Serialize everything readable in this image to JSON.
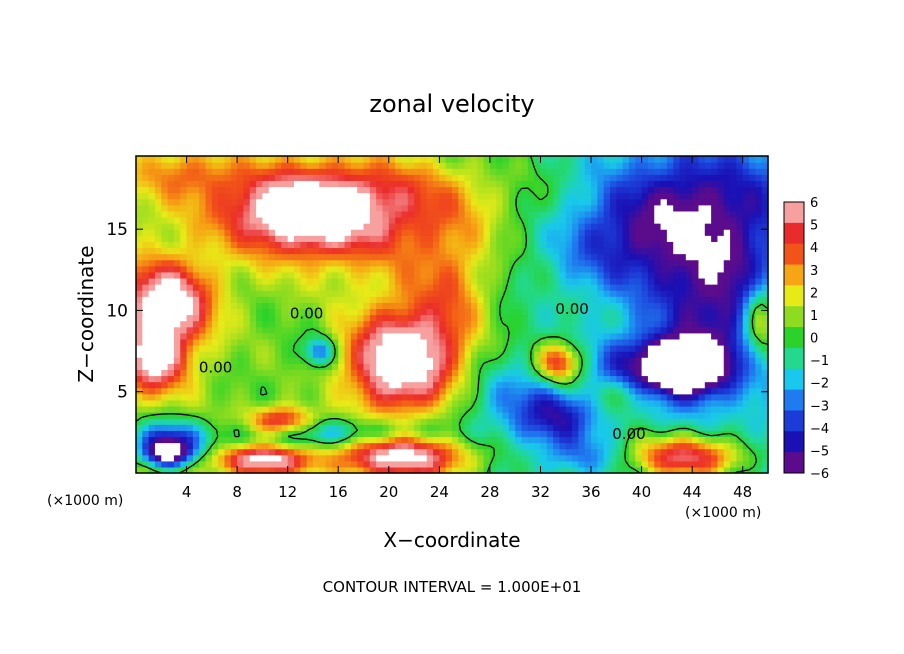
{
  "chart_data": {
    "type": "heatmap",
    "title": "zonal velocity",
    "xlabel": "X−coordinate",
    "ylabel": "Z−coordinate",
    "x_unit": "(×1000 m)",
    "footer": "CONTOUR INTERVAL = 1.000E+01",
    "xlim": [
      0,
      50
    ],
    "ylim": [
      0,
      19.5
    ],
    "x_ticks": [
      4,
      8,
      12,
      16,
      20,
      24,
      28,
      32,
      36,
      40,
      44,
      48
    ],
    "y_ticks": [
      5,
      10,
      15
    ],
    "colorbar": {
      "ticks": [
        6,
        5,
        4,
        3,
        2,
        1,
        0,
        -1,
        -2,
        -3,
        -4,
        -5,
        -6
      ],
      "range": [
        -6,
        6
      ],
      "colors": {
        "neg6": "#5a0c8c",
        "neg5": "#1a10b4",
        "neg4": "#1c3cd8",
        "neg3": "#1f7cf0",
        "neg2": "#19c8ec",
        "neg1": "#22d98e",
        "zero": "#2ad22a",
        "pos1": "#8edc20",
        "pos2": "#e8ea18",
        "pos3": "#f6a614",
        "pos4": "#f25318",
        "pos5": "#ea2b2b",
        "pos6": "#f7a0a0"
      }
    },
    "contour_label": "0.00",
    "contour_labels": [
      {
        "x": 13.5,
        "z": 9.8
      },
      {
        "x": 6.3,
        "z": 6.5
      },
      {
        "x": 34.5,
        "z": 10.1
      },
      {
        "x": 39.0,
        "z": 2.4
      }
    ],
    "blobs": [
      {
        "x": 13,
        "z": 15.8,
        "rx": 6,
        "rz": 2.4,
        "v": 6.2
      },
      {
        "x": 21,
        "z": 15.0,
        "rx": 9,
        "rz": 4.0,
        "v": 3.0
      },
      {
        "x": 17,
        "z": 17.5,
        "rx": 12,
        "rz": 2.5,
        "v": 2.5
      },
      {
        "x": 4,
        "z": 18.5,
        "rx": 4,
        "rz": 1.5,
        "v": 2.0
      },
      {
        "x": 24,
        "z": 7.5,
        "rx": 4,
        "rz": 4.0,
        "v": 2.2
      },
      {
        "x": 25,
        "z": 11,
        "rx": 3,
        "rz": 4.0,
        "v": 2.0
      },
      {
        "x": 20.5,
        "z": 6.8,
        "rx": 4.0,
        "rz": 3.2,
        "v": 7.5
      },
      {
        "x": 2.5,
        "z": 10.5,
        "rx": 3.5,
        "rz": 2.5,
        "v": 7.0
      },
      {
        "x": 1.5,
        "z": 7.0,
        "rx": 2.5,
        "rz": 2.0,
        "v": 6.0
      },
      {
        "x": 33.5,
        "z": 6.8,
        "rx": 1.8,
        "rz": 1.3,
        "v": 6.0
      },
      {
        "x": 11.5,
        "z": 3.2,
        "rx": 2.5,
        "rz": 0.9,
        "v": 5.5
      },
      {
        "x": 21,
        "z": 1.0,
        "rx": 5.5,
        "rz": 1.4,
        "v": 7.0
      },
      {
        "x": 10,
        "z": 0.8,
        "rx": 3.5,
        "rz": 0.9,
        "v": 6.5
      },
      {
        "x": 43.5,
        "z": 1.0,
        "rx": 5.0,
        "rz": 1.4,
        "v": 7.0
      },
      {
        "x": 49.5,
        "z": 9.5,
        "rx": 1.5,
        "rz": 2.5,
        "v": 5.0
      },
      {
        "x": 39.0,
        "z": 5.0,
        "rx": 4.0,
        "rz": 1.2,
        "v": 2.0
      },
      {
        "x": 44,
        "z": 16.5,
        "rx": 7,
        "rz": 3.5,
        "v": -4.0
      },
      {
        "x": 38,
        "z": 14,
        "rx": 6,
        "rz": 3.0,
        "v": -2.5
      },
      {
        "x": 46,
        "z": 11,
        "rx": 5,
        "rz": 4.0,
        "v": -4.0
      },
      {
        "x": 41,
        "z": 6.5,
        "rx": 5,
        "rz": 2.0,
        "v": -4.0
      },
      {
        "x": 43.5,
        "z": 6.5,
        "rx": 3.0,
        "rz": 1.6,
        "v": -8.0
      },
      {
        "x": 2.5,
        "z": 2.2,
        "rx": 3.0,
        "rz": 1.2,
        "v": -4.5
      },
      {
        "x": 2.5,
        "z": 1.2,
        "rx": 2.0,
        "rz": 0.9,
        "v": -7.0
      },
      {
        "x": 14.5,
        "z": 7.5,
        "rx": 1.2,
        "rz": 0.9,
        "v": -4.0
      },
      {
        "x": 33.5,
        "z": 3.5,
        "rx": 3.0,
        "rz": 1.8,
        "v": -3.5
      },
      {
        "x": 29.5,
        "z": 4.5,
        "rx": 4.0,
        "rz": 2.5,
        "v": -2.0
      },
      {
        "x": 16,
        "z": 2.5,
        "rx": 8.0,
        "rz": 0.9,
        "v": -3.0
      },
      {
        "x": 36,
        "z": 1.0,
        "rx": 4.0,
        "rz": 1.2,
        "v": -2.0
      }
    ]
  }
}
